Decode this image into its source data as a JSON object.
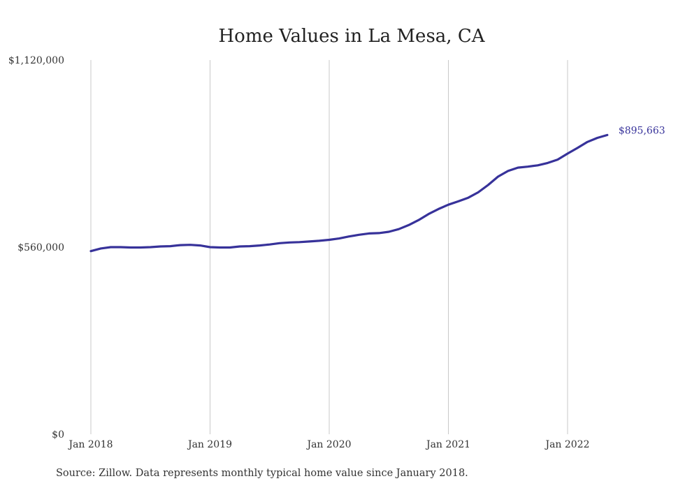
{
  "chart_data": {
    "type": "line",
    "title": "Home Values in La Mesa, CA",
    "source": "Source: Zillow. Data represents monthly typical home value since January 2018.",
    "ylim": [
      0,
      1120000
    ],
    "y_ticks": [
      {
        "value": 0,
        "label": "$0"
      },
      {
        "value": 560000,
        "label": "$560,000"
      },
      {
        "value": 1120000,
        "label": "$1,120,000"
      }
    ],
    "x_ticks": [
      {
        "value": "2018-01",
        "label": "Jan 2018"
      },
      {
        "value": "2019-01",
        "label": "Jan 2019"
      },
      {
        "value": "2020-01",
        "label": "Jan 2020"
      },
      {
        "value": "2021-01",
        "label": "Jan 2021"
      },
      {
        "value": "2022-01",
        "label": "Jan 2022"
      }
    ],
    "grid": {
      "vertical": true,
      "horizontal": false
    },
    "series": [
      {
        "color": "#37329a",
        "end_label": "$895,663",
        "x": [
          "2018-01",
          "2018-02",
          "2018-03",
          "2018-04",
          "2018-05",
          "2018-06",
          "2018-07",
          "2018-08",
          "2018-09",
          "2018-10",
          "2018-11",
          "2018-12",
          "2019-01",
          "2019-02",
          "2019-03",
          "2019-04",
          "2019-05",
          "2019-06",
          "2019-07",
          "2019-08",
          "2019-09",
          "2019-10",
          "2019-11",
          "2019-12",
          "2020-01",
          "2020-02",
          "2020-03",
          "2020-04",
          "2020-05",
          "2020-06",
          "2020-07",
          "2020-08",
          "2020-09",
          "2020-10",
          "2020-11",
          "2020-12",
          "2021-01",
          "2021-02",
          "2021-03",
          "2021-04",
          "2021-05",
          "2021-06",
          "2021-07",
          "2021-08",
          "2021-09",
          "2021-10",
          "2021-11",
          "2021-12",
          "2022-01",
          "2022-02",
          "2022-03",
          "2022-04",
          "2022-05"
        ],
        "values": [
          548000,
          556000,
          560000,
          560000,
          559000,
          559000,
          560000,
          562000,
          563000,
          566000,
          567000,
          565000,
          560000,
          559000,
          559000,
          562000,
          563000,
          565000,
          568000,
          572000,
          574000,
          575000,
          577000,
          579000,
          582000,
          586000,
          592000,
          597000,
          601000,
          602000,
          606000,
          614000,
          626000,
          641000,
          659000,
          674000,
          687000,
          697000,
          708000,
          724000,
          746000,
          771000,
          788000,
          798000,
          801000,
          805000,
          812000,
          822000,
          840000,
          857000,
          875000,
          887000,
          895663
        ]
      }
    ]
  }
}
